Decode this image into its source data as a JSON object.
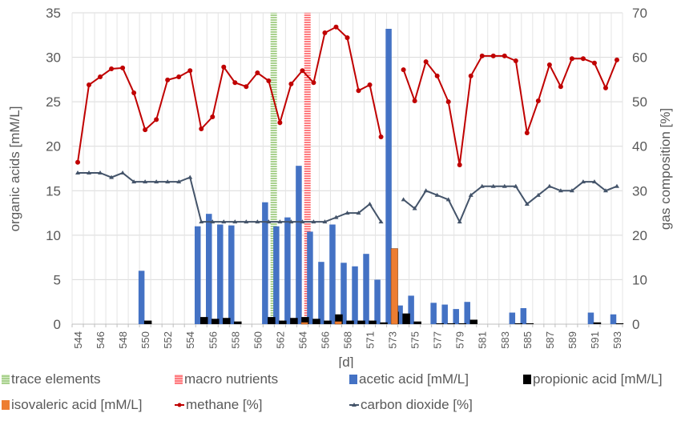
{
  "chart_data": {
    "type": "bar",
    "title": "",
    "xlabel": "[d]",
    "ylabel": "organic acids [mM/L]",
    "y2label": "gas composition [%]",
    "ylim": [
      0,
      35
    ],
    "y2lim": [
      0,
      70
    ],
    "yticks": [
      "0",
      "5",
      "10",
      "15",
      "20",
      "25",
      "30",
      "35"
    ],
    "y2ticks": [
      "0",
      "10",
      "20",
      "30",
      "40",
      "50",
      "60",
      "70"
    ],
    "grid": true,
    "legend_position": "bottom",
    "categories": [
      "544",
      "545",
      "546",
      "547",
      "548",
      "549",
      "550",
      "551",
      "552",
      "553",
      "554",
      "555",
      "556",
      "557",
      "558",
      "559",
      "560",
      "561",
      "562",
      "563",
      "564",
      "565",
      "566",
      "567",
      "568",
      "569",
      "571",
      "572",
      "573",
      "574",
      "575",
      "576",
      "577",
      "578",
      "579",
      "580",
      "581",
      "582",
      "583",
      "584",
      "585",
      "586",
      "587",
      "588",
      "589",
      "590",
      "591",
      "592",
      "593"
    ],
    "tick_labels": [
      "544",
      "546",
      "548",
      "550",
      "552",
      "554",
      "556",
      "558",
      "560",
      "562",
      "564",
      "566",
      "568",
      "571",
      "573",
      "575",
      "577",
      "579",
      "581",
      "583",
      "585",
      "587",
      "589",
      "591",
      "593"
    ],
    "bands": [
      {
        "name": "trace elements",
        "category": "562",
        "color": "#a9d18e"
      },
      {
        "name": "macro nutrients",
        "category": "565",
        "color": "#ff7c80"
      }
    ],
    "series": [
      {
        "name": "acetic acid  [mM/L]",
        "type": "bar",
        "axis": "left",
        "color": "#4472c4",
        "values": [
          0,
          0,
          0,
          0,
          0,
          0,
          6,
          0,
          0,
          0,
          0,
          11,
          12.4,
          11.2,
          11.1,
          0,
          0,
          13.7,
          11,
          12,
          17.8,
          10.4,
          7,
          11.2,
          6.9,
          6.5,
          7.9,
          5,
          33.2,
          2.1,
          3.2,
          0,
          2.4,
          2.2,
          1.7,
          2.5,
          0,
          0,
          0,
          1.3,
          1.8,
          0,
          0,
          0,
          0,
          0,
          1.3,
          0,
          1.1
        ]
      },
      {
        "name": "propionic acid [mM/L]",
        "type": "bar",
        "axis": "left",
        "color": "#000000",
        "values": [
          0,
          0,
          0,
          0,
          0,
          0,
          0.4,
          0,
          0,
          0,
          0,
          0.8,
          0.6,
          0.7,
          0.3,
          0,
          0,
          0.8,
          0.4,
          0.7,
          0.8,
          0.6,
          0.4,
          1.1,
          0.4,
          0.4,
          0.4,
          0.2,
          1.4,
          1.2,
          0.3,
          0,
          0.1,
          0.1,
          0.1,
          0.5,
          0,
          0,
          0,
          0.1,
          0.1,
          0,
          0,
          0,
          0,
          0,
          0.2,
          0,
          0.1
        ]
      },
      {
        "name": "isovaleric acid [mM/L]",
        "type": "bar",
        "axis": "left",
        "color": "#ed7d31",
        "values": [
          0,
          0,
          0,
          0,
          0,
          0,
          0,
          0,
          0,
          0,
          0,
          0,
          0,
          0,
          0,
          0,
          0,
          0,
          0,
          0,
          0.2,
          0,
          0,
          0.3,
          0,
          0,
          0,
          0,
          8.5,
          0,
          0,
          0,
          0,
          0,
          0,
          0,
          0,
          0,
          0,
          0,
          0,
          0,
          0,
          0,
          0,
          0,
          0,
          0,
          0
        ]
      },
      {
        "name": "methane [%]",
        "type": "line",
        "axis": "right",
        "color": "#c00000",
        "marker": "circle",
        "values": [
          36.4,
          53.8,
          55.6,
          57.4,
          57.6,
          52,
          43.7,
          46,
          54.9,
          55.6,
          57,
          43.9,
          46.6,
          57.8,
          54.3,
          53.4,
          56.5,
          54.7,
          45.3,
          54,
          57,
          54.3,
          65.5,
          66.8,
          64.4,
          52.5,
          53.8,
          42.1,
          null,
          57.2,
          50.2,
          59,
          55.8,
          50,
          35.8,
          55.8,
          60.3,
          60.3,
          60.3,
          59.2,
          43,
          50.2,
          58.3,
          53.4,
          59.7,
          59.7,
          58.7,
          53.1,
          59.4
        ]
      },
      {
        "name": "carbon dioxide [%]",
        "type": "line",
        "axis": "right",
        "color": "#44546a",
        "marker": "triangle",
        "values": [
          34,
          34,
          34,
          33,
          34,
          32,
          32,
          32,
          32,
          32,
          33,
          23,
          23,
          23,
          23,
          23,
          23,
          23,
          23,
          23,
          23,
          23,
          23,
          24,
          25,
          25,
          27,
          23,
          null,
          28,
          26,
          30,
          29,
          28,
          23,
          29,
          31,
          31,
          31,
          31,
          27,
          29,
          31,
          30,
          30,
          32,
          32,
          30,
          31
        ]
      }
    ]
  },
  "legend": {
    "trace": "trace elements",
    "macro": "macro nutrients",
    "acetic": "acetic acid  [mM/L]",
    "propionic": "propionic acid [mM/L]",
    "isovaleric": "isovaleric acid [mM/L]",
    "methane": "methane [%]",
    "co2": "carbon dioxide [%]"
  }
}
